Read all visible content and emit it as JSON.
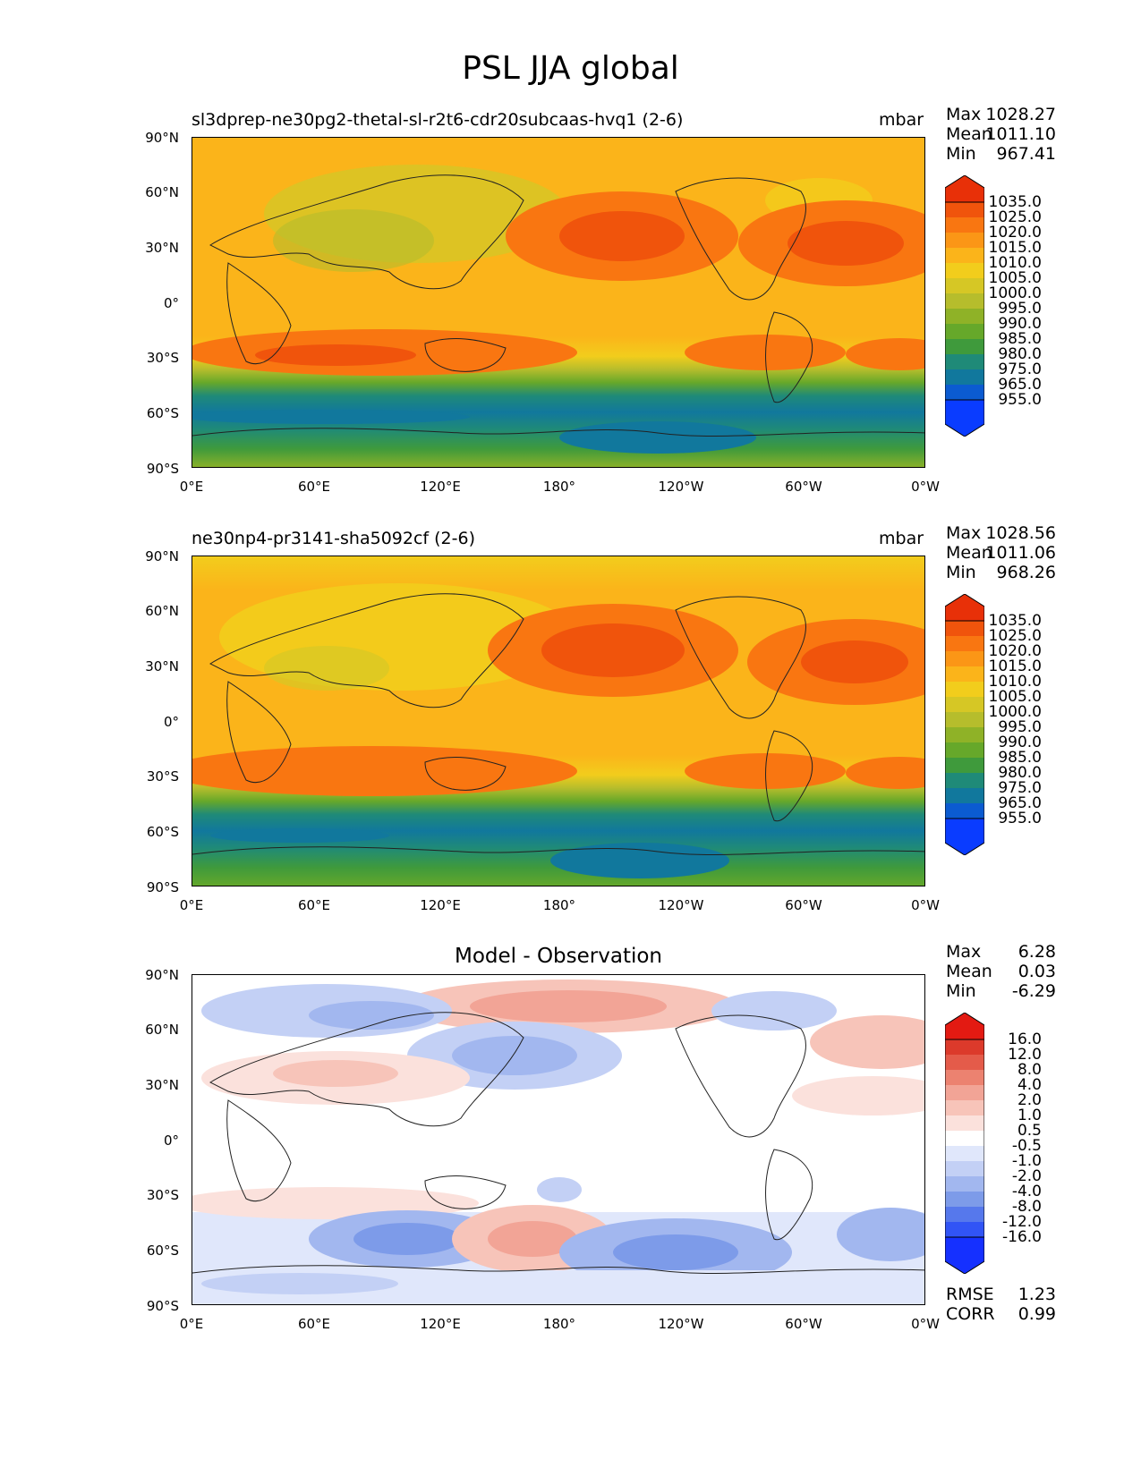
{
  "title": "PSL JJA global",
  "panels": [
    {
      "subtitle": "sl3dprep-ne30pg2-thetal-sl-r2t6-cdr20subcaas-hvq1 (2-6)",
      "units": "mbar",
      "stats": {
        "max_label": "Max",
        "max": "1028.27",
        "mean_label": "Mean",
        "mean": "1011.10",
        "min_label": "Min",
        "min": "967.41"
      },
      "colorbar": [
        "1035.0",
        "1025.0",
        "1020.0",
        "1015.0",
        "1010.0",
        "1005.0",
        "1000.0",
        "995.0",
        "990.0",
        "985.0",
        "980.0",
        "975.0",
        "965.0",
        "955.0"
      ]
    },
    {
      "subtitle": "ne30np4-pr3141-sha5092cf (2-6)",
      "units": "mbar",
      "stats": {
        "max_label": "Max",
        "max": "1028.56",
        "mean_label": "Mean",
        "mean": "1011.06",
        "min_label": "Min",
        "min": "968.26"
      },
      "colorbar": [
        "1035.0",
        "1025.0",
        "1020.0",
        "1015.0",
        "1010.0",
        "1005.0",
        "1000.0",
        "995.0",
        "990.0",
        "985.0",
        "980.0",
        "975.0",
        "965.0",
        "955.0"
      ]
    },
    {
      "title": "Model - Observation",
      "stats": {
        "max_label": "Max",
        "max": "6.28",
        "mean_label": "Mean",
        "mean": "0.03",
        "min_label": "Min",
        "min": "-6.29",
        "rmse_label": "RMSE",
        "rmse": "1.23",
        "corr_label": "CORR",
        "corr": "0.99"
      },
      "colorbar": [
        "16.0",
        "12.0",
        "8.0",
        "4.0",
        "2.0",
        "1.0",
        "0.5",
        "-0.5",
        "-1.0",
        "-2.0",
        "-4.0",
        "-8.0",
        "-12.0",
        "-16.0"
      ]
    }
  ],
  "axes": {
    "lat_ticks": [
      "90°N",
      "60°N",
      "30°N",
      "0°",
      "30°S",
      "60°S",
      "90°S"
    ],
    "lon_ticks": [
      "0°E",
      "60°E",
      "120°E",
      "180°",
      "120°W",
      "60°W",
      "0°W"
    ]
  },
  "colors": {
    "field_scale": [
      "#0a3cff",
      "#0b5bd1",
      "#11789d",
      "#1f8a78",
      "#3f9a3c",
      "#66a82a",
      "#8fb227",
      "#b6bd2c",
      "#d6c725",
      "#f2cd1c",
      "#fbb41a",
      "#fb9616",
      "#f97611",
      "#f0540c",
      "#e83008"
    ],
    "diff_scale": [
      "#1530ff",
      "#3154f5",
      "#5678ec",
      "#7d9be9",
      "#a2b7ef",
      "#c3d0f5",
      "#e0e7fb",
      "#ffffff",
      "#fbe1dc",
      "#f7c4b9",
      "#f2a496",
      "#ec8270",
      "#e45b4a",
      "#dc3a2b",
      "#e31a12"
    ]
  }
}
